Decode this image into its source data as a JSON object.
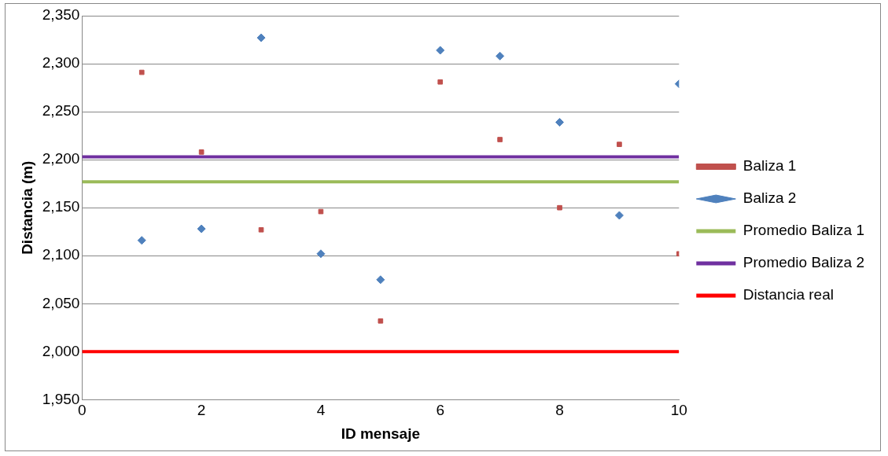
{
  "chart_data": {
    "type": "scatter",
    "xlabel": "ID mensaje",
    "ylabel": "Distancia (m)",
    "xlim": [
      0,
      10
    ],
    "xticks": [
      0,
      2,
      4,
      6,
      8,
      10
    ],
    "ylim": [
      1950,
      2350
    ],
    "yticks": [
      {
        "value": 1950,
        "label": "1,950"
      },
      {
        "value": 2000,
        "label": "2,000"
      },
      {
        "value": 2050,
        "label": "2,050"
      },
      {
        "value": 2100,
        "label": "2,100"
      },
      {
        "value": 2150,
        "label": "2,150"
      },
      {
        "value": 2200,
        "label": "2,200"
      },
      {
        "value": 2250,
        "label": "2,250"
      },
      {
        "value": 2300,
        "label": "2,300"
      },
      {
        "value": 2350,
        "label": "2,350"
      }
    ],
    "grid": "y",
    "legend": "right",
    "series": [
      {
        "name": "Baliza 1",
        "marker": "square",
        "color": "#c0504d",
        "x": [
          1,
          2,
          3,
          4,
          5,
          6,
          7,
          8,
          9,
          10
        ],
        "values": [
          2291,
          2208,
          2127,
          2146,
          2032,
          2281,
          2221,
          2150,
          2216,
          2102
        ]
      },
      {
        "name": "Baliza 2",
        "marker": "diamond",
        "color": "#4f81bd",
        "x": [
          1,
          2,
          3,
          4,
          5,
          6,
          7,
          8,
          9,
          10
        ],
        "values": [
          2116,
          2128,
          2327,
          2102,
          2075,
          2314,
          2308,
          2239,
          2142,
          2279
        ]
      },
      {
        "name": "Promedio Baliza 1",
        "type": "line",
        "marker": "none",
        "color": "#9bbb59",
        "x": [
          0,
          10
        ],
        "values": [
          2177,
          2177
        ]
      },
      {
        "name": "Promedio Baliza 2",
        "type": "line",
        "marker": "none",
        "color": "#7030a0",
        "x": [
          0,
          10
        ],
        "values": [
          2203,
          2203
        ]
      },
      {
        "name": "Distancia real",
        "type": "line",
        "marker": "none",
        "color": "#ff0000",
        "x": [
          0,
          10
        ],
        "values": [
          2000,
          2000
        ]
      }
    ]
  }
}
